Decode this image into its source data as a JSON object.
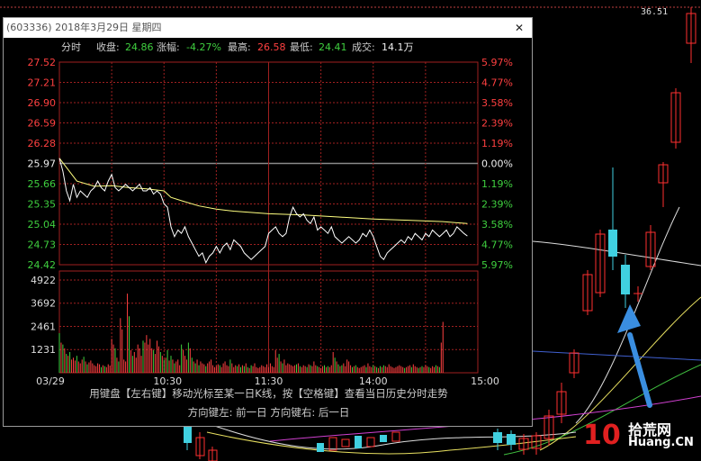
{
  "background": {
    "top_price": "36.51"
  },
  "popup": {
    "title": "(603336) 2018年3月29日 星期四",
    "close_label": "✕",
    "stats": {
      "mode": "分时",
      "close_label": "收盘:",
      "close_value": "24.86",
      "change_label": "涨幅:",
      "change_value": "-4.27%",
      "high_label": "最高:",
      "high_value": "26.58",
      "low_label": "最低:",
      "low_value": "24.41",
      "volume_label": "成交:",
      "volume_value": "14.1万"
    },
    "hint_line1": "用键盘【左右键】移动光标至某一日K线，按【空格键】查看当日历史分时走势",
    "hint_line2": "方向键左: 前一日    方向键右: 后一日"
  },
  "logo": {
    "number": "10",
    "cn": "拾荒网",
    "domain": "Huang.CN"
  },
  "colors": {
    "up": "#ff4040",
    "down": "#3fd03f",
    "flat": "#eeeeee",
    "price_line": "#ffffff",
    "avg_line": "#ffff80",
    "grid": "#a02020"
  },
  "chart_data": {
    "type": "line",
    "title": "",
    "prev_close": 25.97,
    "price_ticks": [
      "27.52",
      "27.21",
      "26.90",
      "26.59",
      "26.28",
      "25.97",
      "25.66",
      "25.35",
      "25.04",
      "24.73",
      "24.42"
    ],
    "pct_ticks": [
      "5.97%",
      "4.77%",
      "3.58%",
      "2.39%",
      "1.19%",
      "0.00%",
      "1.19%",
      "2.39%",
      "3.58%",
      "4.77%",
      "5.97%"
    ],
    "volume_ticks": [
      "4922",
      "3692",
      "2461",
      "1231"
    ],
    "time_labels": [
      "03/29",
      "10:30",
      "11:30",
      "14:00",
      "15:00"
    ],
    "ylim": [
      24.42,
      27.52
    ],
    "volume_max": 4922,
    "price_series": {
      "name": "",
      "points": [
        [
          0,
          26.05
        ],
        [
          2,
          25.85
        ],
        [
          4,
          25.55
        ],
        [
          6,
          25.4
        ],
        [
          8,
          25.65
        ],
        [
          10,
          25.45
        ],
        [
          12,
          25.55
        ],
        [
          14,
          25.5
        ],
        [
          16,
          25.45
        ],
        [
          18,
          25.55
        ],
        [
          20,
          25.6
        ],
        [
          22,
          25.7
        ],
        [
          24,
          25.6
        ],
        [
          26,
          25.55
        ],
        [
          28,
          25.7
        ],
        [
          30,
          25.8
        ],
        [
          32,
          25.6
        ],
        [
          34,
          25.55
        ],
        [
          36,
          25.6
        ],
        [
          38,
          25.65
        ],
        [
          40,
          25.6
        ],
        [
          42,
          25.55
        ],
        [
          44,
          25.6
        ],
        [
          46,
          25.65
        ],
        [
          48,
          25.55
        ],
        [
          50,
          25.55
        ],
        [
          52,
          25.6
        ],
        [
          54,
          25.5
        ],
        [
          56,
          25.55
        ],
        [
          58,
          25.5
        ],
        [
          60,
          25.35
        ],
        [
          62,
          25.3
        ],
        [
          64,
          25.0
        ],
        [
          66,
          24.85
        ],
        [
          68,
          24.95
        ],
        [
          70,
          24.9
        ],
        [
          72,
          25.0
        ],
        [
          74,
          24.85
        ],
        [
          76,
          24.75
        ],
        [
          78,
          24.65
        ],
        [
          80,
          24.55
        ],
        [
          82,
          24.6
        ],
        [
          84,
          24.45
        ],
        [
          86,
          24.55
        ],
        [
          88,
          24.6
        ],
        [
          90,
          24.7
        ],
        [
          92,
          24.6
        ],
        [
          94,
          24.7
        ],
        [
          96,
          24.75
        ],
        [
          98,
          24.65
        ],
        [
          100,
          24.8
        ],
        [
          102,
          24.75
        ],
        [
          104,
          24.7
        ],
        [
          106,
          24.6
        ],
        [
          108,
          24.55
        ],
        [
          110,
          24.5
        ],
        [
          112,
          24.55
        ],
        [
          114,
          24.6
        ],
        [
          116,
          24.65
        ],
        [
          118,
          24.7
        ],
        [
          120,
          24.9
        ],
        [
          122,
          24.95
        ],
        [
          124,
          25.0
        ],
        [
          126,
          24.9
        ],
        [
          128,
          24.85
        ],
        [
          130,
          24.9
        ],
        [
          132,
          25.15
        ],
        [
          134,
          25.3
        ],
        [
          136,
          25.2
        ],
        [
          138,
          25.15
        ],
        [
          140,
          25.2
        ],
        [
          142,
          25.1
        ],
        [
          144,
          25.05
        ],
        [
          146,
          25.15
        ],
        [
          148,
          24.95
        ],
        [
          150,
          25.0
        ],
        [
          152,
          24.95
        ],
        [
          154,
          24.9
        ],
        [
          156,
          25.0
        ],
        [
          158,
          24.85
        ],
        [
          160,
          24.8
        ],
        [
          162,
          24.75
        ],
        [
          164,
          24.8
        ],
        [
          166,
          24.85
        ],
        [
          168,
          24.8
        ],
        [
          170,
          24.75
        ],
        [
          172,
          24.8
        ],
        [
          174,
          24.9
        ],
        [
          176,
          24.85
        ],
        [
          178,
          24.95
        ],
        [
          180,
          24.85
        ],
        [
          182,
          24.7
        ],
        [
          184,
          24.55
        ],
        [
          186,
          24.5
        ],
        [
          188,
          24.6
        ],
        [
          190,
          24.65
        ],
        [
          192,
          24.7
        ],
        [
          194,
          24.75
        ],
        [
          196,
          24.8
        ],
        [
          198,
          24.75
        ],
        [
          200,
          24.85
        ],
        [
          202,
          24.8
        ],
        [
          204,
          24.9
        ],
        [
          206,
          24.85
        ],
        [
          208,
          24.8
        ],
        [
          210,
          24.9
        ],
        [
          212,
          24.85
        ],
        [
          214,
          24.95
        ],
        [
          216,
          24.9
        ],
        [
          218,
          24.85
        ],
        [
          220,
          24.9
        ],
        [
          222,
          24.95
        ],
        [
          224,
          24.85
        ],
        [
          226,
          24.9
        ],
        [
          228,
          25.0
        ],
        [
          230,
          24.95
        ],
        [
          232,
          24.9
        ],
        [
          234,
          24.86
        ]
      ]
    },
    "avg_series": {
      "name": "",
      "points": [
        [
          0,
          26.05
        ],
        [
          10,
          25.7
        ],
        [
          20,
          25.62
        ],
        [
          30,
          25.63
        ],
        [
          40,
          25.6
        ],
        [
          50,
          25.58
        ],
        [
          60,
          25.55
        ],
        [
          64,
          25.45
        ],
        [
          70,
          25.4
        ],
        [
          80,
          25.32
        ],
        [
          90,
          25.27
        ],
        [
          100,
          25.24
        ],
        [
          120,
          25.2
        ],
        [
          140,
          25.18
        ],
        [
          160,
          25.15
        ],
        [
          180,
          25.12
        ],
        [
          200,
          25.1
        ],
        [
          220,
          25.08
        ],
        [
          234,
          25.05
        ]
      ]
    },
    "volume_series": {
      "name": "",
      "values": [
        2100,
        1600,
        1500,
        1300,
        1000,
        900,
        1100,
        700,
        800,
        650,
        900,
        600,
        500,
        700,
        850,
        600,
        450,
        550,
        650,
        500,
        400,
        350,
        500,
        450,
        300,
        400,
        350,
        300,
        450,
        380,
        1800,
        1500,
        1300,
        800,
        600,
        2900,
        2300,
        700,
        600,
        4200,
        3000,
        1200,
        900,
        1100,
        800,
        1500,
        1300,
        900,
        1700,
        1600,
        2000,
        1500,
        1800,
        1300,
        1200,
        1000,
        1700,
        1400,
        1100,
        900,
        700,
        800,
        1200,
        650,
        900,
        700,
        500,
        600,
        700,
        400,
        1500,
        1200,
        900,
        700,
        1600,
        1300,
        800,
        600,
        500,
        700,
        400,
        600,
        500,
        450,
        350,
        500,
        600,
        700,
        400,
        300,
        350,
        450,
        400,
        300,
        500,
        600,
        400,
        350,
        700,
        500,
        300,
        400,
        350,
        450,
        300,
        400,
        350,
        500,
        300,
        250,
        400,
        350,
        500,
        300,
        250,
        300,
        400,
        350,
        300,
        450,
        300,
        500,
        350,
        300,
        1200,
        800,
        1000,
        600,
        500,
        700,
        400,
        500,
        450,
        400,
        350,
        400,
        450,
        500,
        350,
        300,
        400,
        350,
        300,
        450,
        400,
        350,
        600,
        400,
        350,
        300,
        250,
        350,
        400,
        300,
        350,
        300,
        400,
        1100,
        800,
        600,
        450,
        350,
        400,
        500,
        350,
        700,
        600,
        400,
        300,
        350,
        400,
        300,
        250,
        300,
        350,
        400,
        300,
        500,
        350,
        300,
        400,
        350,
        300,
        250,
        350,
        300,
        400,
        350,
        300,
        450,
        350,
        300,
        250,
        300,
        350,
        400,
        350,
        300,
        250,
        300,
        350,
        400,
        300,
        450,
        350,
        300,
        250,
        300,
        350,
        300,
        400,
        350,
        300,
        250,
        350,
        300,
        400,
        350,
        300,
        1600,
        2700
      ]
    }
  }
}
